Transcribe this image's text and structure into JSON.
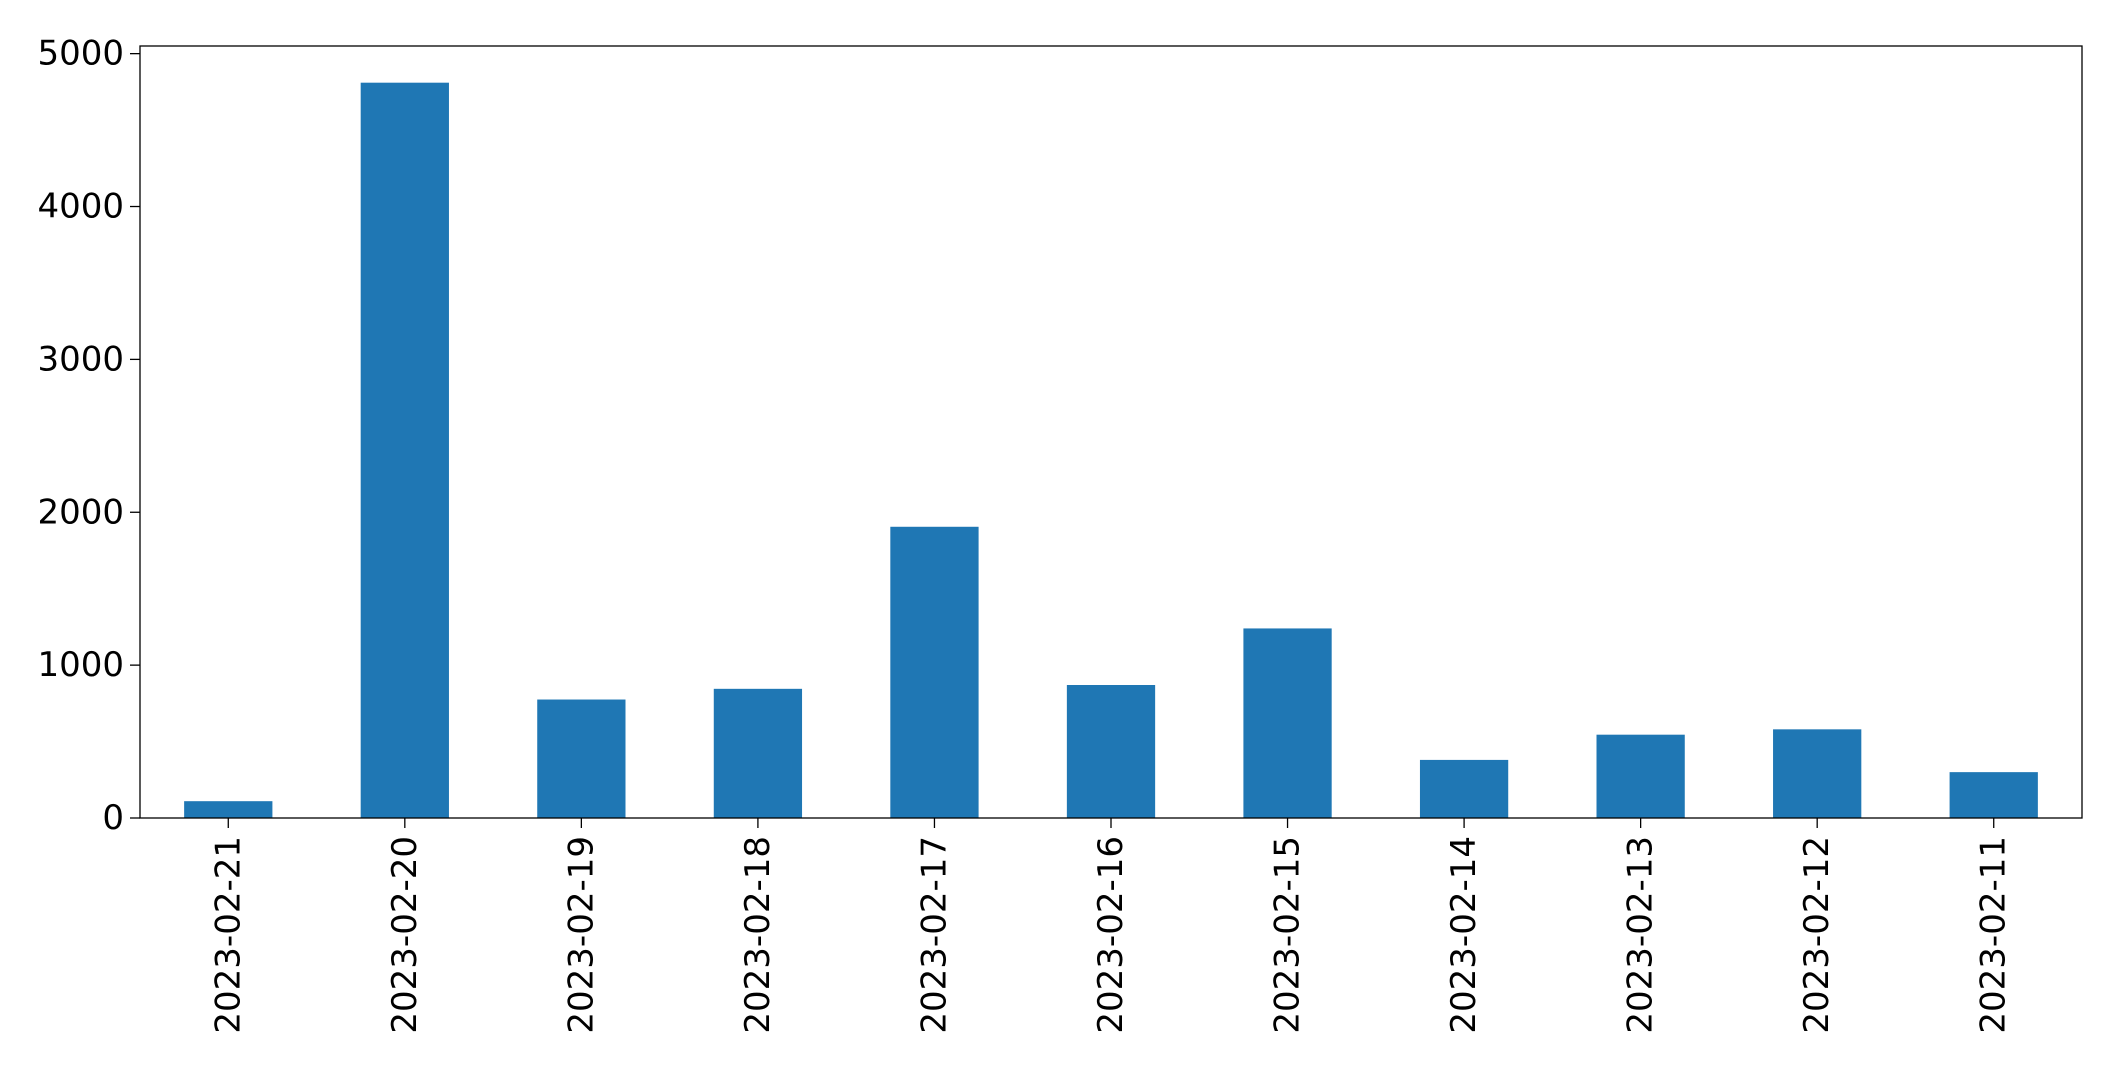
{
  "chart_data": {
    "type": "bar",
    "title": "",
    "xlabel": "",
    "ylabel": "",
    "categories": [
      "2023-02-21",
      "2023-02-20",
      "2023-02-19",
      "2023-02-18",
      "2023-02-17",
      "2023-02-16",
      "2023-02-15",
      "2023-02-14",
      "2023-02-13",
      "2023-02-12",
      "2023-02-11"
    ],
    "values": [
      110,
      4810,
      775,
      845,
      1905,
      870,
      1240,
      380,
      545,
      580,
      300
    ],
    "ylim": [
      0,
      5050
    ],
    "yticks": [
      0,
      1000,
      2000,
      3000,
      4000,
      5000
    ],
    "bar_color": "#1f77b4",
    "grid": false,
    "legend": false
  }
}
